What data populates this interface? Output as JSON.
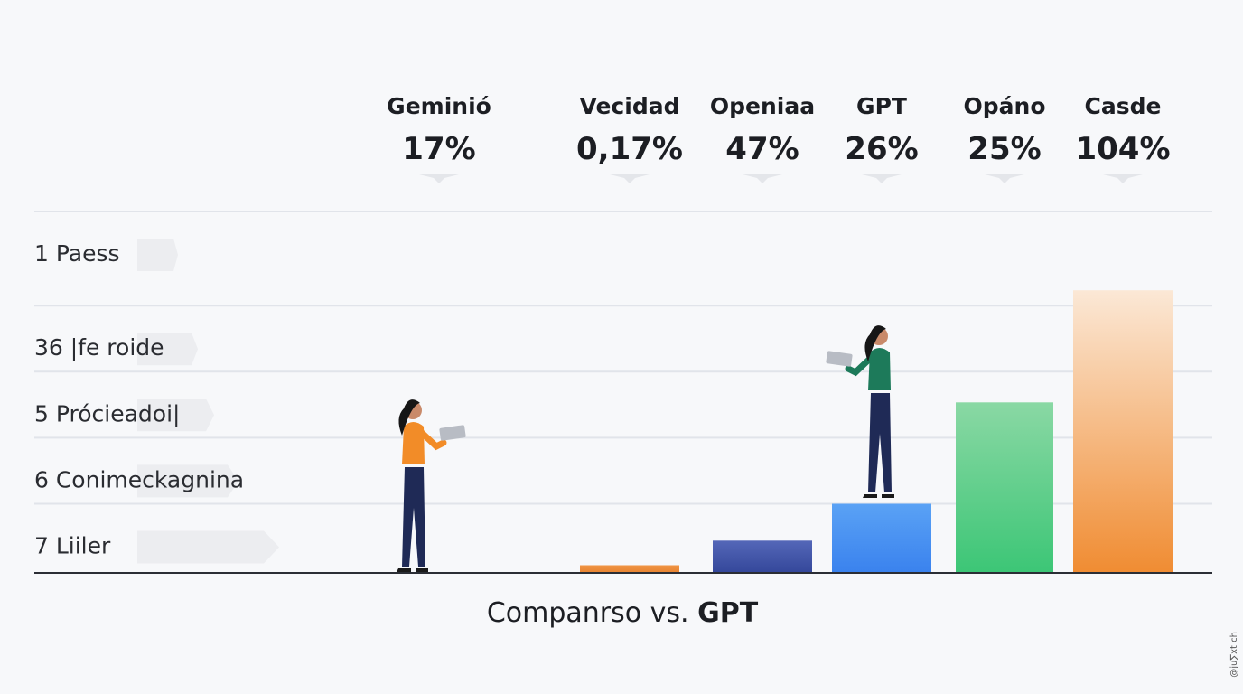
{
  "chart_data": {
    "type": "bar",
    "title": "",
    "xlabel": "Companrso vs. GPT",
    "ylabel": "",
    "categories": [
      "Geminió",
      "Vecidad",
      "Openiaa",
      "GPT",
      "Opáno",
      "Casde"
    ],
    "header_labels": [
      "17%",
      "0,17%",
      "47%",
      "26%",
      "25%",
      "104%"
    ],
    "values": [
      0,
      0.5,
      2.1,
      4.5,
      11.1,
      18.4
    ],
    "ylim": [
      0,
      20
    ],
    "y_ticks": [
      {
        "value": 0,
        "label": ""
      },
      {
        "value": 4.5,
        "label": "7 Liiler"
      },
      {
        "value": 8.8,
        "label": "6 Conimeckagnina"
      },
      {
        "value": 13.1,
        "label": "5 Prócieadoi|"
      },
      {
        "value": 17.4,
        "label": "36 |fe roide"
      },
      {
        "value": 21.7,
        "label": "1 Paess"
      }
    ],
    "bar_colors": [
      [
        "#f5f6f8",
        "#f5f6f8"
      ],
      [
        "#f09545",
        "#e8832f"
      ],
      [
        "#5467b8",
        "#34479a"
      ],
      [
        "#5aa2f5",
        "#3a82ee"
      ],
      [
        "#8ad8a4",
        "#3cc676"
      ],
      [
        "#fbe8d6",
        "#f08c32"
      ]
    ],
    "grid": true,
    "legend": "none"
  },
  "footer": {
    "xlabel_prefix": "Companrso vs. ",
    "xlabel_emphasis": "GPT",
    "watermark": "@ju∑xt ch"
  },
  "colors": {
    "background": "#f7f8fa",
    "gridline": "#e1e4ea",
    "baseline": "#2b2e35",
    "header_text": "#1c1e23",
    "tick_text": "#2a2c31"
  }
}
